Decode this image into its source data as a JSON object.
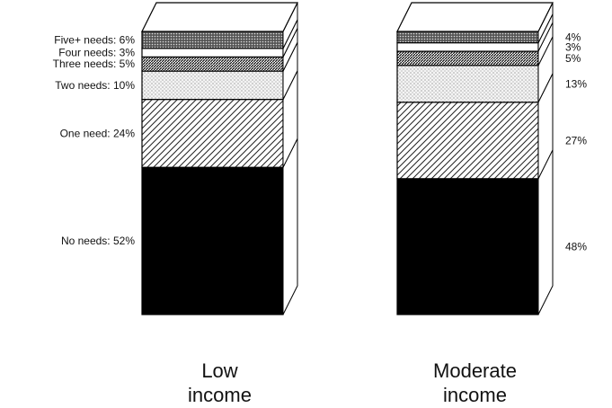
{
  "chart_data": {
    "type": "bar",
    "stacked": true,
    "three_d": true,
    "categories": [
      "Low\nincome",
      "Moderate\nincome"
    ],
    "series": [
      {
        "name": "No needs",
        "values": [
          52,
          48
        ],
        "pattern": "solid",
        "color": "#000000"
      },
      {
        "name": "One need",
        "values": [
          24,
          27
        ],
        "pattern": "diagonal-hatch"
      },
      {
        "name": "Two needs",
        "values": [
          10,
          13
        ],
        "pattern": "light-stipple"
      },
      {
        "name": "Three needs",
        "values": [
          5,
          5
        ],
        "pattern": "dense-diagonal"
      },
      {
        "name": "Four needs",
        "values": [
          3,
          3
        ],
        "pattern": "blank"
      },
      {
        "name": "Five+ needs",
        "values": [
          6,
          4
        ],
        "pattern": "dark-stipple"
      }
    ],
    "segment_labels": [
      [
        "No needs: 52%",
        "One need: 24%",
        "Two needs: 10%",
        "Three needs: 5%",
        "Four needs: 3%",
        "Five+ needs: 6%"
      ],
      [
        "48%",
        "27%",
        "13%",
        "5%",
        "3%",
        "4%"
      ]
    ],
    "ylim": [
      0,
      100
    ]
  }
}
